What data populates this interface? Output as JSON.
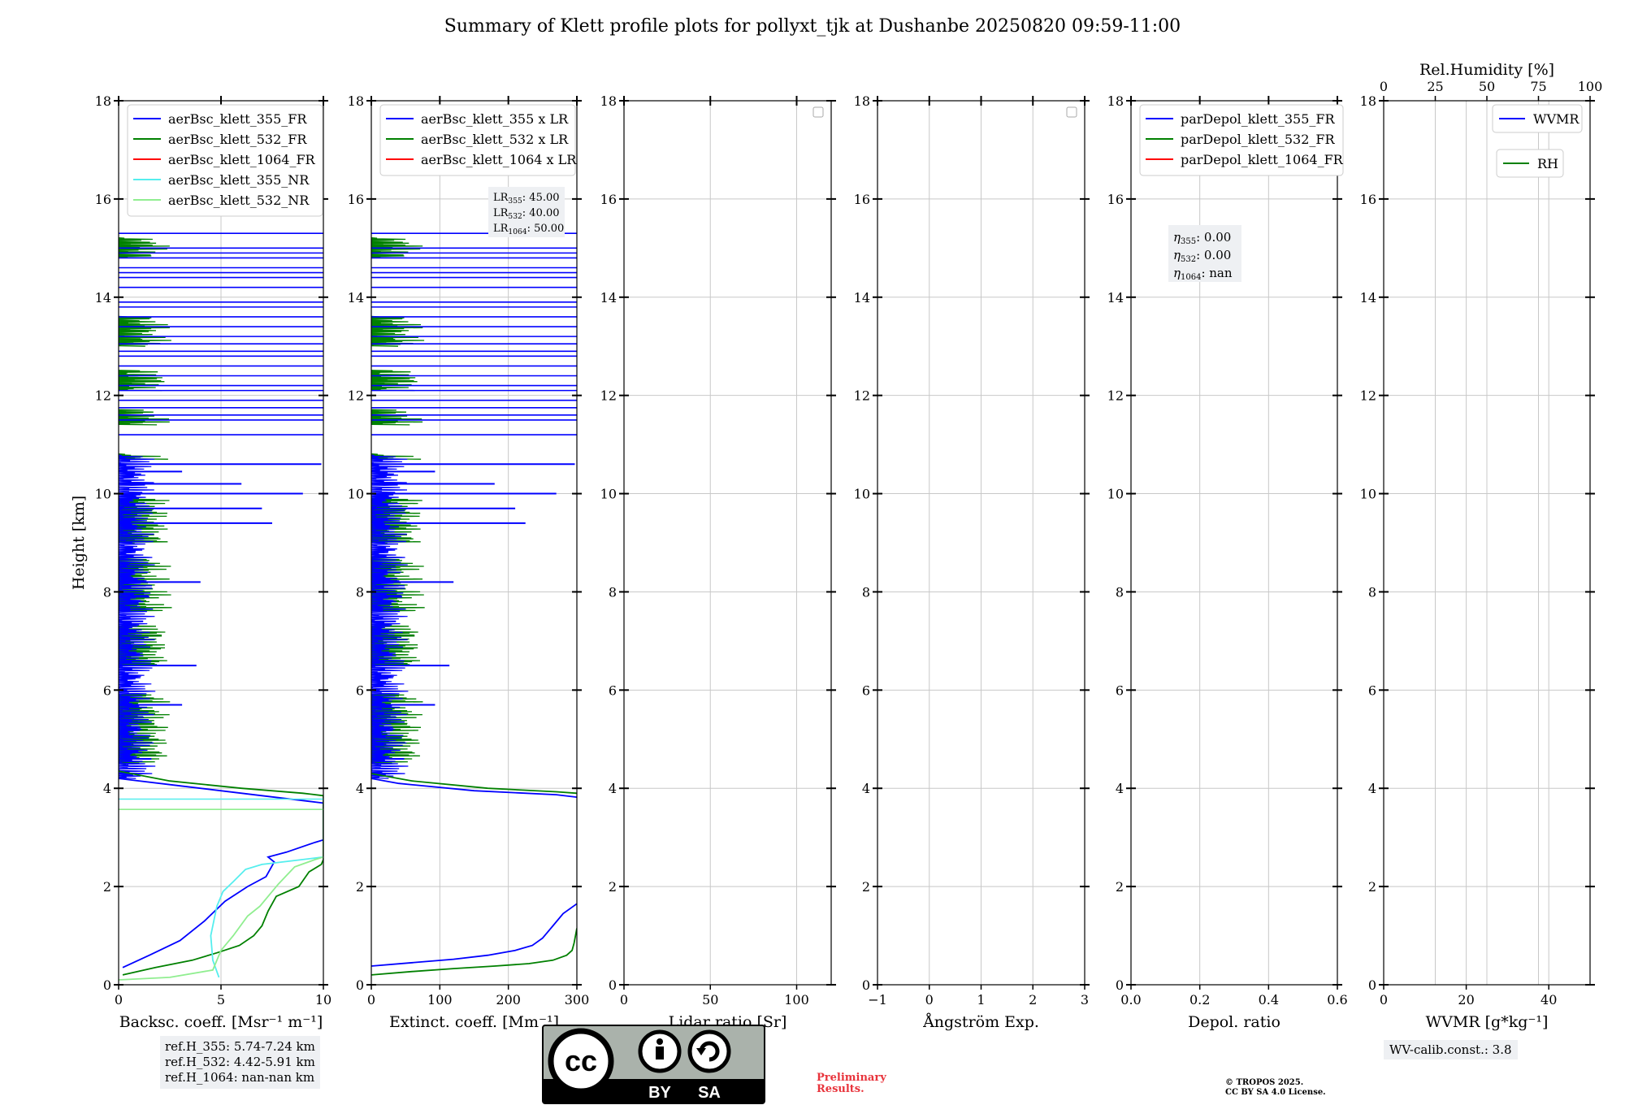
{
  "title": "Summary of Klett profile plots for pollyxt_tjk at Dushanbe 20250820 09:59-11:00",
  "colors": {
    "blue": "#0000ff",
    "green": "#008000",
    "red": "#ff0000",
    "cyan": "#55eeee",
    "lightgreen": "#90ee90",
    "grid": "#c8c8c8",
    "box": "#eef0f3",
    "prelim": "#e8343c"
  },
  "ref_heights": [
    "ref.H_355: 5.74-7.24 km",
    "ref.H_532: 4.42-5.91 km",
    "ref.H_1064: nan-nan km"
  ],
  "preliminary": [
    "Preliminary",
    "Results."
  ],
  "copyright": [
    "© TROPOS 2025.",
    "CC BY SA 4.0 License."
  ],
  "wv_calib": "WV-calib.const.: 3.8",
  "license_badge": {
    "by": "BY",
    "sa": "SA",
    "cc": "cc"
  },
  "chart_data": [
    {
      "id": "backscatter",
      "type": "line",
      "ylabel": "Height [km]",
      "xlabel": "Backsc. coeff. [Msr⁻¹ m⁻¹]",
      "xlim": [
        0,
        10
      ],
      "ylim": [
        0,
        18
      ],
      "xticks": [
        "0",
        "5",
        "10"
      ],
      "yticks": [
        "0",
        "2",
        "4",
        "6",
        "8",
        "10",
        "12",
        "14",
        "16",
        "18"
      ],
      "legend": [
        {
          "label": "aerBsc_klett_355_FR",
          "color": "#0000ff"
        },
        {
          "label": "aerBsc_klett_532_FR",
          "color": "#008000"
        },
        {
          "label": "aerBsc_klett_1064_FR",
          "color": "#ff0000"
        },
        {
          "label": "aerBsc_klett_355_NR",
          "color": "#55eeee"
        },
        {
          "label": "aerBsc_klett_532_NR",
          "color": "#90ee90"
        }
      ],
      "series": [
        {
          "name": "aerBsc_klett_355_FR",
          "color": "#0000ff",
          "x": [
            0.2,
            1.5,
            3.0,
            4.2,
            5.2,
            6.3,
            7.2,
            7.6,
            7.3,
            8.2,
            9.6,
            10,
            10,
            9.0,
            7.0,
            3.0,
            0.0
          ],
          "y": [
            0.35,
            0.6,
            0.9,
            1.3,
            1.7,
            2.0,
            2.2,
            2.5,
            2.6,
            2.7,
            2.9,
            2.95,
            3.7,
            3.75,
            3.85,
            4.05,
            4.2
          ]
        },
        {
          "name": "aerBsc_klett_532_FR",
          "color": "#008000",
          "x": [
            0.2,
            1.8,
            3.6,
            4.8,
            5.9,
            6.6,
            7.0,
            7.3,
            7.7,
            8.8,
            9.3,
            9.9,
            10,
            10,
            9.0,
            6.0,
            2.5,
            0.0
          ],
          "y": [
            0.2,
            0.35,
            0.5,
            0.65,
            0.8,
            1.0,
            1.2,
            1.5,
            1.8,
            2.0,
            2.3,
            2.45,
            2.55,
            3.85,
            3.9,
            4.0,
            4.15,
            4.35
          ]
        },
        {
          "name": "aerBsc_klett_355_NR",
          "color": "#55eeee",
          "x": [
            4.9,
            4.6,
            4.5,
            4.7,
            4.8,
            5.0,
            5.1,
            5.6,
            6.2,
            7.0,
            7.6,
            8.0,
            9.0,
            10
          ],
          "y": [
            0.15,
            0.5,
            1.0,
            1.4,
            1.6,
            1.8,
            1.9,
            2.1,
            2.35,
            2.45,
            2.48,
            2.5,
            2.55,
            2.6
          ],
          "extra": [
            [
              0,
              3.78
            ],
            [
              10,
              3.78
            ]
          ]
        },
        {
          "name": "aerBsc_klett_532_NR",
          "color": "#90ee90",
          "x": [
            0.0,
            2.5,
            4.6,
            5.0,
            5.6,
            6.3,
            6.9,
            7.3,
            7.8,
            8.6,
            9.6,
            10
          ],
          "y": [
            0.1,
            0.15,
            0.3,
            0.7,
            1.0,
            1.4,
            1.6,
            1.8,
            2.05,
            2.4,
            2.55,
            2.6
          ],
          "extra": [
            [
              0,
              3.57
            ],
            [
              10,
              3.57
            ]
          ]
        }
      ],
      "noise": {
        "blue_spikes": [
          [
            4.3,
            0.9
          ],
          [
            4.6,
            1.6
          ],
          [
            5.7,
            3.1
          ],
          [
            6.5,
            3.8
          ],
          [
            7.4,
            1.2
          ],
          [
            7.9,
            1.5
          ],
          [
            8.2,
            4.0
          ],
          [
            9.4,
            7.5
          ],
          [
            9.7,
            7.0
          ],
          [
            10.0,
            9.0
          ],
          [
            10.2,
            6.0
          ],
          [
            10.45,
            3.1
          ],
          [
            10.6,
            9.9
          ]
        ],
        "blue_full_lines": [
          11.2,
          11.5,
          11.6,
          11.75,
          11.9,
          12.1,
          12.2,
          12.4,
          12.6,
          12.8,
          12.9,
          13.05,
          13.2,
          13.4,
          13.6,
          13.8,
          13.9,
          14.2,
          14.4,
          14.5,
          14.6,
          14.8,
          14.9,
          15.0,
          15.3
        ],
        "green_bands": [
          [
            4.5,
            5.9
          ],
          [
            6.5,
            7.3
          ],
          [
            7.6,
            8.7
          ],
          [
            9.0,
            9.9
          ],
          [
            10.7,
            10.8
          ],
          [
            11.4,
            11.7
          ],
          [
            12.1,
            12.5
          ],
          [
            13.0,
            13.6
          ],
          [
            14.8,
            15.2
          ]
        ]
      }
    },
    {
      "id": "extinction",
      "type": "line",
      "xlabel": "Extinct. coeff. [Mm⁻¹]",
      "xlim": [
        0,
        300
      ],
      "ylim": [
        0,
        18
      ],
      "xticks": [
        "0",
        "100",
        "200",
        "300"
      ],
      "yticks": [
        "0",
        "2",
        "4",
        "6",
        "8",
        "10",
        "12",
        "14",
        "16",
        "18"
      ],
      "legend": [
        {
          "label": "aerBsc_klett_355 x LR",
          "color": "#0000ff"
        },
        {
          "label": "aerBsc_klett_532 x LR",
          "color": "#008000"
        },
        {
          "label": "aerBsc_klett_1064 x LR",
          "color": "#ff0000"
        }
      ],
      "lr_text": [
        "LR355: 45.00",
        "LR532: 40.00",
        "LR1064: 50.00"
      ],
      "series": [
        {
          "name": "aerBsc_klett_355 x LR",
          "color": "#0000ff",
          "x": [
            0,
            60,
            120,
            170,
            210,
            235,
            250,
            265,
            280,
            300
          ],
          "y": [
            0.38,
            0.45,
            0.52,
            0.6,
            0.7,
            0.8,
            0.95,
            1.2,
            1.45,
            1.65
          ]
        },
        {
          "name": "aerBsc_klett_532 x LR",
          "color": "#008000",
          "x": [
            0,
            60,
            120,
            180,
            230,
            265,
            285,
            293,
            296,
            298,
            300
          ],
          "y": [
            0.2,
            0.27,
            0.33,
            0.38,
            0.43,
            0.5,
            0.6,
            0.7,
            0.85,
            1.0,
            1.15
          ]
        },
        {
          "name": "upper355",
          "color": "#0000ff",
          "x": [
            300,
            270,
            150,
            40,
            0
          ],
          "y": [
            3.82,
            3.87,
            3.95,
            4.1,
            4.2
          ]
        },
        {
          "name": "upper532",
          "color": "#008000",
          "x": [
            300,
            270,
            170,
            60,
            0
          ],
          "y": [
            3.9,
            3.93,
            4.0,
            4.15,
            4.3
          ]
        }
      ]
    },
    {
      "id": "lidar_ratio",
      "type": "line",
      "xlabel": "Lidar ratio [Sr]",
      "xlim": [
        0,
        120
      ],
      "ylim": [
        0,
        18
      ],
      "xticks": [
        "0",
        "50",
        "100"
      ],
      "xtick_vals": [
        0,
        50,
        100
      ],
      "yticks": [
        "0",
        "2",
        "4",
        "6",
        "8",
        "10",
        "12",
        "14",
        "16",
        "18"
      ],
      "legend": []
    },
    {
      "id": "angstrom",
      "type": "line",
      "xlabel": "Ångström Exp.",
      "xlim": [
        -1,
        3
      ],
      "ylim": [
        0,
        18
      ],
      "xticks": [
        "−1",
        "0",
        "1",
        "2",
        "3"
      ],
      "xtick_vals": [
        -1,
        0,
        1,
        2,
        3
      ],
      "yticks": [
        "0",
        "2",
        "4",
        "6",
        "8",
        "10",
        "12",
        "14",
        "16",
        "18"
      ],
      "legend": []
    },
    {
      "id": "depol",
      "type": "line",
      "xlabel": "Depol. ratio",
      "xlim": [
        0,
        0.6
      ],
      "ylim": [
        0,
        18
      ],
      "xticks": [
        "0.0",
        "0.2",
        "0.4",
        "0.6"
      ],
      "xtick_vals": [
        0,
        0.2,
        0.4,
        0.6
      ],
      "yticks": [
        "0",
        "2",
        "4",
        "6",
        "8",
        "10",
        "12",
        "14",
        "16",
        "18"
      ],
      "legend": [
        {
          "label": "parDepol_klett_355_FR",
          "color": "#0000ff"
        },
        {
          "label": "parDepol_klett_532_FR",
          "color": "#008000"
        },
        {
          "label": "parDepol_klett_1064_FR",
          "color": "#ff0000"
        }
      ],
      "eta_text": [
        "η355: 0.00",
        "η532: 0.00",
        "η1064: nan"
      ]
    },
    {
      "id": "wvmr",
      "type": "line",
      "xlabel": "WVMR [g*kg⁻¹]",
      "xlim": [
        0,
        50
      ],
      "ylim": [
        0,
        18
      ],
      "xticks": [
        "0",
        "20",
        "40"
      ],
      "xtick_vals": [
        0,
        20,
        40
      ],
      "yticks": [
        "0",
        "2",
        "4",
        "6",
        "8",
        "10",
        "12",
        "14",
        "16",
        "18"
      ],
      "top_axis": {
        "label": "Rel.Humidity [%]",
        "ticks": [
          "0",
          "25",
          "50",
          "75",
          "100"
        ],
        "tick_vals": [
          0,
          25,
          50,
          75,
          100
        ],
        "range": [
          0,
          100
        ]
      },
      "legend": [
        {
          "label": "WVMR",
          "color": "#0000ff"
        },
        {
          "label": "RH",
          "color": "#008000"
        }
      ]
    }
  ]
}
